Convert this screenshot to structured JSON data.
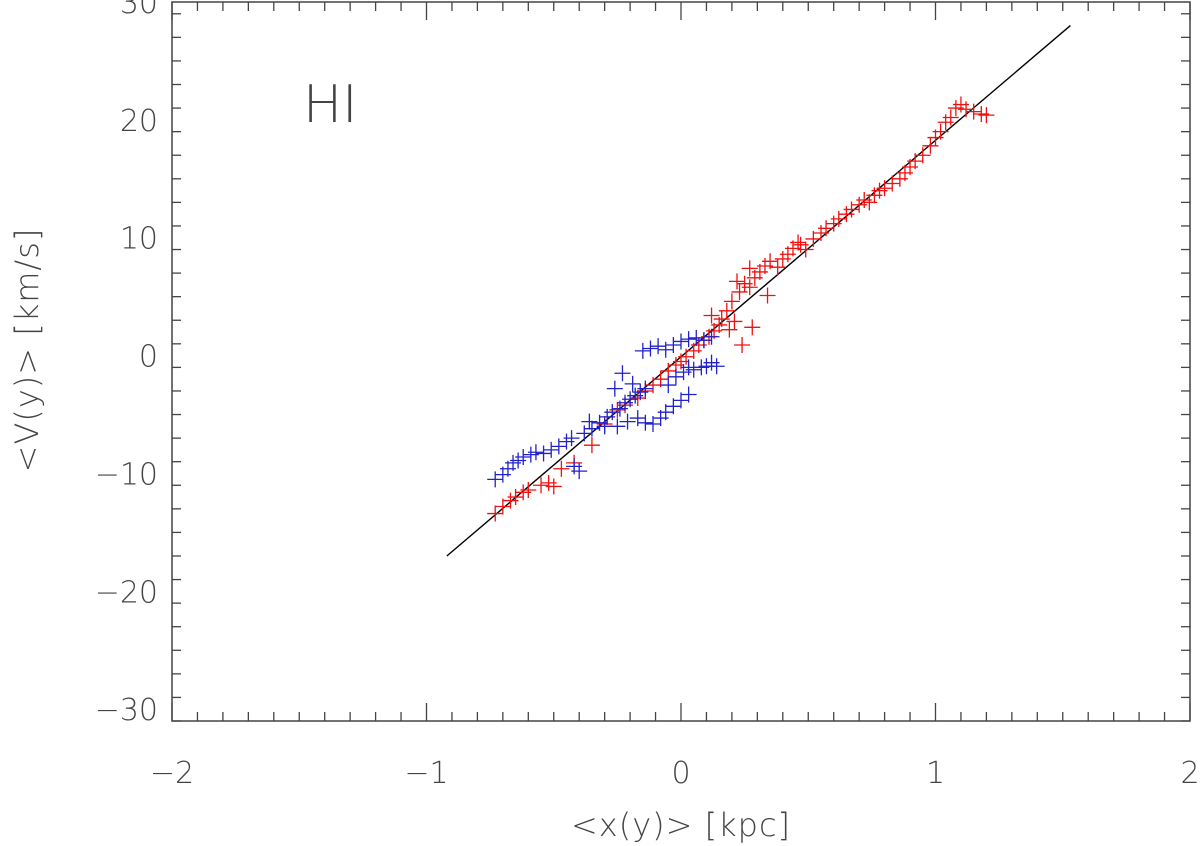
{
  "chart_data": {
    "type": "scatter",
    "title": "",
    "annotation": "HI",
    "xlabel": "<x(y)>   [kpc]",
    "ylabel": "<V(y)>   [km/s]",
    "xlim": [
      -2,
      2
    ],
    "ylim": [
      -31,
      30
    ],
    "x_ticks": [
      -2,
      -1,
      0,
      1,
      2
    ],
    "x_tick_labels": [
      "−2",
      "−1",
      "0",
      "1",
      "2"
    ],
    "y_ticks": [
      -30,
      -20,
      -10,
      0,
      10,
      20,
      30
    ],
    "y_tick_labels": [
      "−30",
      "−20",
      "−10",
      "0",
      "10",
      "20",
      "30"
    ],
    "grid": false,
    "marker": "plus",
    "series": [
      {
        "color": "#ee1111",
        "points": [
          [
            -0.73,
            -13.4
          ],
          [
            -0.7,
            -12.8
          ],
          [
            -0.67,
            -12.3
          ],
          [
            -0.65,
            -12.0
          ],
          [
            -0.62,
            -11.6
          ],
          [
            -0.6,
            -11.4
          ],
          [
            -0.55,
            -11.0
          ],
          [
            -0.52,
            -10.8
          ],
          [
            -0.5,
            -11.1
          ],
          [
            -0.47,
            -9.6
          ],
          [
            -0.42,
            -9.1
          ],
          [
            -0.35,
            -7.6
          ],
          [
            -0.3,
            -5.8
          ],
          [
            -0.25,
            -4.6
          ],
          [
            -0.22,
            -4.2
          ],
          [
            -0.17,
            -3.6
          ],
          [
            -0.14,
            -3.0
          ],
          [
            -0.11,
            -2.5
          ],
          [
            -0.08,
            -2.0
          ],
          [
            -0.05,
            -1.3
          ],
          [
            -0.02,
            -0.8
          ],
          [
            0.0,
            -0.5
          ],
          [
            0.02,
            -0.1
          ],
          [
            0.05,
            0.4
          ],
          [
            0.07,
            0.9
          ],
          [
            0.09,
            1.3
          ],
          [
            0.11,
            1.6
          ],
          [
            0.13,
            2.1
          ],
          [
            0.15,
            2.6
          ],
          [
            0.12,
            3.4
          ],
          [
            0.16,
            3.1
          ],
          [
            0.18,
            3.8
          ],
          [
            0.2,
            4.6
          ],
          [
            0.21,
            2.9
          ],
          [
            0.23,
            5.4
          ],
          [
            0.25,
            6.1
          ],
          [
            0.22,
            6.3
          ],
          [
            0.27,
            5.8
          ],
          [
            0.29,
            6.6
          ],
          [
            0.31,
            7.1
          ],
          [
            0.27,
            7.4
          ],
          [
            0.33,
            7.6
          ],
          [
            0.35,
            8.0
          ],
          [
            0.38,
            7.5
          ],
          [
            0.4,
            8.2
          ],
          [
            0.42,
            8.6
          ],
          [
            0.44,
            9.1
          ],
          [
            0.47,
            9.4
          ],
          [
            0.49,
            9.0
          ],
          [
            0.52,
            9.9
          ],
          [
            0.55,
            10.4
          ],
          [
            0.57,
            10.8
          ],
          [
            0.6,
            11.2
          ],
          [
            0.62,
            11.6
          ],
          [
            0.65,
            12.0
          ],
          [
            0.67,
            12.4
          ],
          [
            0.7,
            12.8
          ],
          [
            0.72,
            13.2
          ],
          [
            0.74,
            13.0
          ],
          [
            0.76,
            13.6
          ],
          [
            0.78,
            14.0
          ],
          [
            0.8,
            14.2
          ],
          [
            0.83,
            14.6
          ],
          [
            0.86,
            15.0
          ],
          [
            0.88,
            15.5
          ],
          [
            0.9,
            16.0
          ],
          [
            0.92,
            16.5
          ],
          [
            0.95,
            17.0
          ],
          [
            0.98,
            17.8
          ],
          [
            1.0,
            18.5
          ],
          [
            1.02,
            19.0
          ],
          [
            1.04,
            19.8
          ],
          [
            1.06,
            20.2
          ],
          [
            1.08,
            21.0
          ],
          [
            1.1,
            21.3
          ],
          [
            1.12,
            20.9
          ],
          [
            1.15,
            20.7
          ],
          [
            1.18,
            20.5
          ],
          [
            1.2,
            20.4
          ],
          [
            0.24,
            0.9
          ],
          [
            0.28,
            2.4
          ],
          [
            0.19,
            2.2
          ],
          [
            0.34,
            5.1
          ],
          [
            0.46,
            9.6
          ]
        ]
      },
      {
        "color": "#2222cc",
        "points": [
          [
            -0.73,
            -10.5
          ],
          [
            -0.7,
            -10.1
          ],
          [
            -0.68,
            -9.6
          ],
          [
            -0.66,
            -9.1
          ],
          [
            -0.64,
            -8.9
          ],
          [
            -0.62,
            -8.6
          ],
          [
            -0.59,
            -8.4
          ],
          [
            -0.57,
            -8.2
          ],
          [
            -0.54,
            -8.3
          ],
          [
            -0.51,
            -8.0
          ],
          [
            -0.48,
            -7.7
          ],
          [
            -0.45,
            -7.3
          ],
          [
            -0.42,
            -9.4
          ],
          [
            -0.4,
            -9.8
          ],
          [
            -0.43,
            -7.0
          ],
          [
            -0.38,
            -6.6
          ],
          [
            -0.35,
            -6.2
          ],
          [
            -0.32,
            -5.7
          ],
          [
            -0.29,
            -5.2
          ],
          [
            -0.27,
            -4.8
          ],
          [
            -0.24,
            -4.5
          ],
          [
            -0.22,
            -4.0
          ],
          [
            -0.2,
            -3.7
          ],
          [
            -0.18,
            -3.4
          ],
          [
            -0.16,
            -3.1
          ],
          [
            -0.14,
            -2.8
          ],
          [
            -0.17,
            -5.3
          ],
          [
            -0.14,
            -5.7
          ],
          [
            -0.11,
            -5.8
          ],
          [
            -0.08,
            -5.3
          ],
          [
            -0.06,
            -4.8
          ],
          [
            -0.03,
            -4.3
          ],
          [
            0.0,
            -3.8
          ],
          [
            0.03,
            -3.3
          ],
          [
            -0.05,
            -2.5
          ],
          [
            -0.02,
            -1.8
          ],
          [
            0.01,
            -1.4
          ],
          [
            0.03,
            -1.0
          ],
          [
            0.05,
            -1.2
          ],
          [
            0.08,
            -1.0
          ],
          [
            0.1,
            -0.9
          ],
          [
            0.12,
            -0.6
          ],
          [
            0.14,
            -0.9
          ],
          [
            -0.15,
            0.4
          ],
          [
            -0.12,
            0.6
          ],
          [
            -0.09,
            0.8
          ],
          [
            -0.06,
            0.5
          ],
          [
            -0.03,
            0.9
          ],
          [
            0.0,
            1.2
          ],
          [
            0.03,
            1.4
          ],
          [
            0.06,
            1.5
          ],
          [
            0.09,
            1.3
          ],
          [
            0.12,
            1.6
          ],
          [
            -0.25,
            -6.0
          ],
          [
            -0.21,
            -5.6
          ],
          [
            -0.3,
            -6.0
          ],
          [
            -0.36,
            -5.6
          ],
          [
            -0.19,
            -2.4
          ],
          [
            -0.23,
            -1.5
          ],
          [
            -0.26,
            -2.8
          ]
        ]
      }
    ],
    "fit_line": {
      "x": [
        -0.92,
        1.53
      ],
      "y": [
        -17.0,
        28.0
      ],
      "color": "#000000"
    }
  }
}
